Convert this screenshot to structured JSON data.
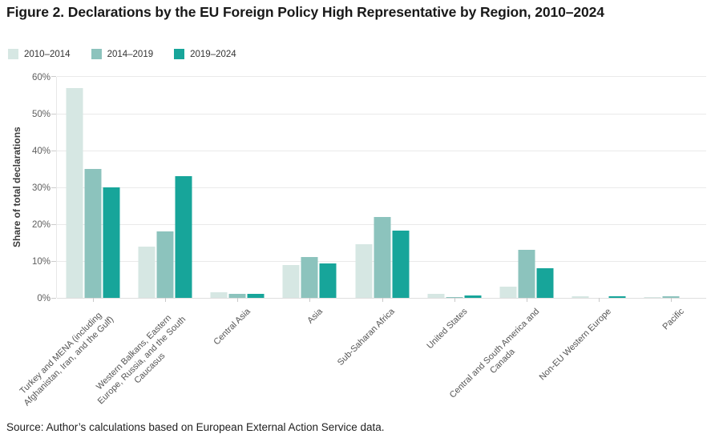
{
  "source_note": "Source: Author’s calculations based on European External Action Service data.",
  "chart_data": {
    "type": "bar",
    "title": "Figure 2. Declarations by the EU Foreign Policy High Representative by Region, 2010–2024",
    "xlabel": "",
    "ylabel": "Share of total declarations",
    "ylim": [
      0,
      60
    ],
    "yticks": [
      0,
      10,
      20,
      30,
      40,
      50,
      60
    ],
    "ytick_suffix": "%",
    "grid": true,
    "legend_position": "top-left",
    "categories": [
      "Turkey and MENA (including\nAfghanistan, Iran, and the Gulf)",
      "Western Balkans, Eastern\nEurope, Russia, and the South\nCaucasus",
      "Central Asia",
      "Asia",
      "Sub-Saharan Africa",
      "United States",
      "Central and South America and\nCanada",
      "Non-EU Western Europe",
      "Pacific"
    ],
    "series": [
      {
        "name": "2010–2014",
        "color": "#d6e7e3",
        "values": [
          57,
          14,
          1.5,
          9,
          14.5,
          1.2,
          3,
          0.5,
          0.3
        ]
      },
      {
        "name": "2014–2019",
        "color": "#8cc3bd",
        "values": [
          35,
          18,
          1.2,
          11.2,
          22,
          0.3,
          13,
          0,
          0.5
        ]
      },
      {
        "name": "2019–2024",
        "color": "#17a59a",
        "values": [
          30,
          33,
          1.1,
          9.3,
          18.2,
          0.7,
          8,
          0.5,
          0
        ]
      }
    ]
  }
}
